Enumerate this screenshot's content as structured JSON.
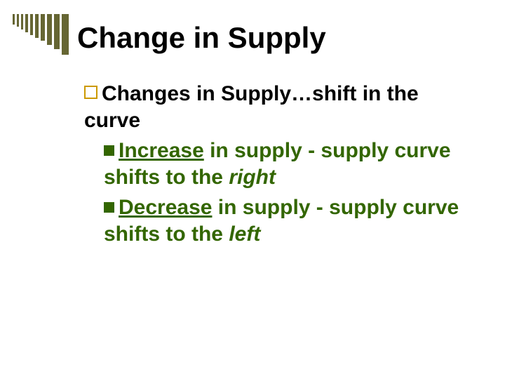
{
  "slide": {
    "title": "Change in Supply",
    "deco_bars": {
      "color": "#666633",
      "bars": [
        {
          "w": 3,
          "h": 15
        },
        {
          "w": 3,
          "h": 18
        },
        {
          "w": 3,
          "h": 22
        },
        {
          "w": 4,
          "h": 26
        },
        {
          "w": 4,
          "h": 30
        },
        {
          "w": 5,
          "h": 34
        },
        {
          "w": 6,
          "h": 38
        },
        {
          "w": 7,
          "h": 44
        },
        {
          "w": 8,
          "h": 50
        },
        {
          "w": 10,
          "h": 58
        }
      ]
    },
    "bullet_level1_border_color": "#cc9900",
    "bullet_level2_color": "#336600",
    "level1_text_pre": "Changes in Supply…shift in the curve",
    "items": [
      {
        "underlined": "Increase",
        "mid": " in supply - supply curve shifts to the ",
        "italic": "right"
      },
      {
        "underlined": "Decrease",
        "mid": " in supply - supply curve shifts to the ",
        "italic": "left"
      }
    ],
    "title_color": "#000000",
    "level1_color": "#000000",
    "level2_color": "#336600",
    "background_color": "#ffffff",
    "title_fontsize": 42,
    "body_fontsize": 30
  }
}
